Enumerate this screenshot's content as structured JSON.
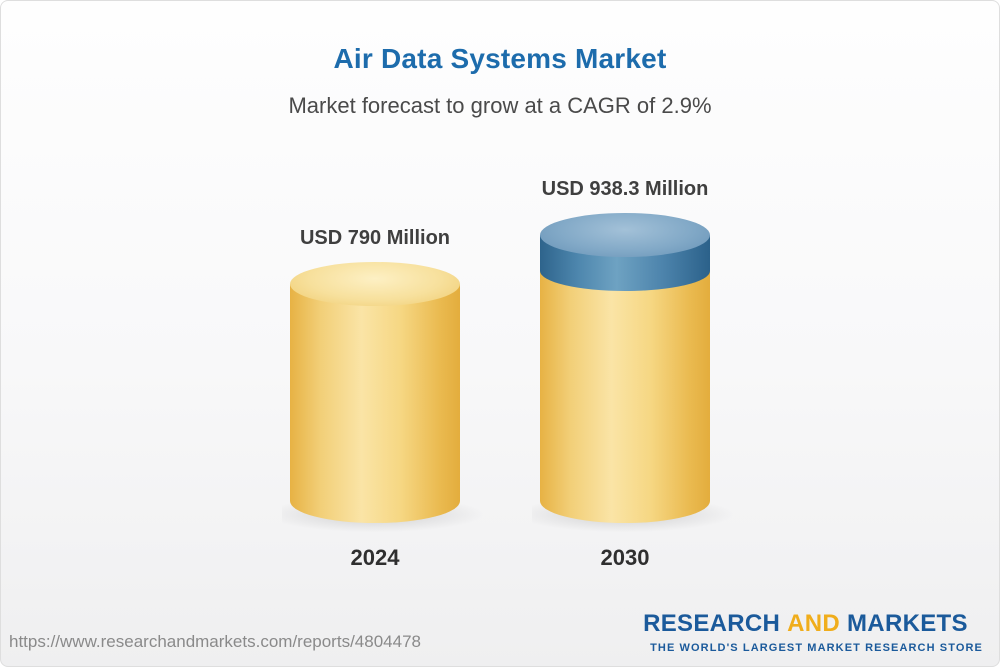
{
  "header": {
    "title": "Air Data Systems Market",
    "subtitle": "Market forecast to grow at a CAGR of 2.9%"
  },
  "chart_data": {
    "type": "bar",
    "bar_style": "3d-cylinder",
    "title": "Air Data Systems Market",
    "subtitle": "Market forecast to grow at a CAGR of 2.9%",
    "categories": [
      "2024",
      "2030"
    ],
    "values": [
      790,
      938.3
    ],
    "unit": "USD Million",
    "value_labels": [
      "USD 790 Million",
      "USD 938.3 Million"
    ],
    "cagr_percent": 2.9,
    "ylim": [
      0,
      938.3
    ],
    "grid": false,
    "legend_position": "none",
    "bar_color": "#f3c95f",
    "growth_cap_color": "#4d84ac"
  },
  "columns": [
    {
      "value_label": "USD 790 Million",
      "year": "2024"
    },
    {
      "value_label": "USD 938.3 Million",
      "year": "2030"
    }
  ],
  "footer": {
    "url": "https://www.researchandmarkets.com/reports/4804478",
    "logo": {
      "word1": "RESEARCH",
      "word2": "AND",
      "word3": "MARKETS",
      "tagline": "THE WORLD'S LARGEST MARKET RESEARCH STORE"
    }
  },
  "colors": {
    "title_blue": "#1d6cac",
    "subtitle_gray": "#4a4a4a",
    "value_label_gray": "#3f3f3f",
    "cylinder_yellow": "#f3c95f",
    "cap_blue": "#4d84ac",
    "logo_blue": "#1b5a9b",
    "logo_orange": "#f0ad1c",
    "url_gray": "#8a8a8a"
  }
}
